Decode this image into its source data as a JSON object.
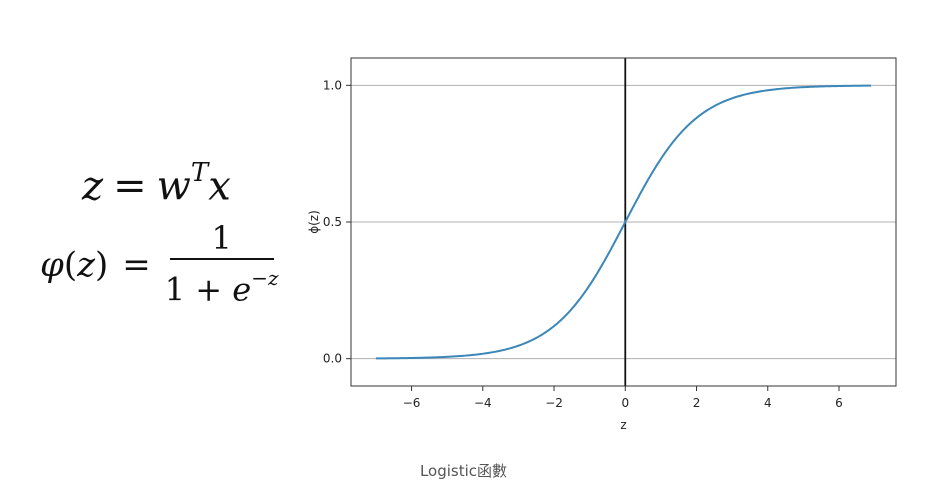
{
  "formulas": {
    "z_def": {
      "lhs": "z",
      "eq": "=",
      "w": "w",
      "sup": "T",
      "x": "x"
    },
    "phi_def": {
      "phi": "φ",
      "open": "(",
      "arg": "z",
      "close": ")",
      "eq": "=",
      "numerator": "1",
      "den_prefix": "1 + ",
      "den_base": "e",
      "den_exp": "−z"
    }
  },
  "caption": "Logistic函數",
  "colors": {
    "curve": "#3a87b8",
    "vline": "#111111",
    "grid": "#b0b0b0",
    "frame": "#333333"
  },
  "chart_data": {
    "type": "line",
    "title": "",
    "xlabel": "z",
    "ylabel": "ϕ(z)",
    "xlim": [
      -7.7,
      7.6
    ],
    "ylim": [
      -0.1,
      1.1
    ],
    "xticks": [
      -6,
      -4,
      -2,
      0,
      2,
      4,
      6
    ],
    "xtick_labels": [
      "−6",
      "−4",
      "−2",
      "0",
      "2",
      "4",
      "6"
    ],
    "yticks": [
      0.0,
      0.5,
      1.0
    ],
    "ytick_labels": [
      "0.0",
      "0.5",
      "1.0"
    ],
    "grid": "horizontal at y ticks",
    "vertical_line_at_x": 0,
    "series": [
      {
        "function": "sigmoid",
        "x": [
          -7,
          -6,
          -5,
          -4,
          -3,
          -2,
          -1,
          0,
          1,
          2,
          3,
          4,
          5,
          6,
          6.9
        ],
        "values": [
          0.001,
          0.002,
          0.007,
          0.018,
          0.047,
          0.119,
          0.269,
          0.5,
          0.731,
          0.881,
          0.953,
          0.982,
          0.993,
          0.998,
          0.999
        ]
      }
    ]
  }
}
